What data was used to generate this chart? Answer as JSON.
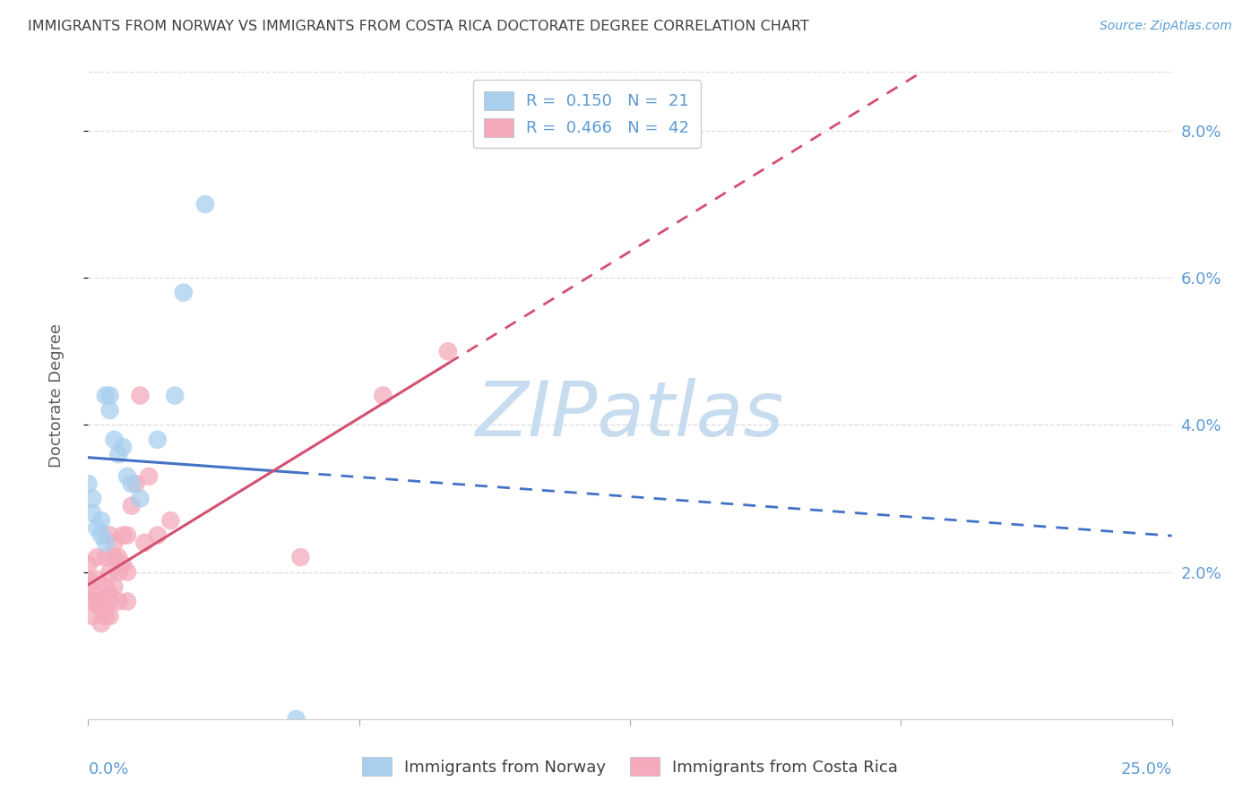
{
  "title": "IMMIGRANTS FROM NORWAY VS IMMIGRANTS FROM COSTA RICA DOCTORATE DEGREE CORRELATION CHART",
  "source": "Source: ZipAtlas.com",
  "ylabel": "Doctorate Degree",
  "xlim": [
    0.0,
    0.25
  ],
  "ylim": [
    0.0,
    0.088
  ],
  "norway_R": 0.15,
  "norway_N": 21,
  "costarica_R": 0.466,
  "costarica_N": 42,
  "norway_color": "#A8CFEE",
  "costarica_color": "#F4AABB",
  "norway_line_color": "#4472C4",
  "costarica_line_color": "#D45070",
  "norway_scatter_x": [
    0.0,
    0.001,
    0.001,
    0.002,
    0.003,
    0.003,
    0.004,
    0.004,
    0.005,
    0.005,
    0.006,
    0.007,
    0.008,
    0.009,
    0.01,
    0.012,
    0.016,
    0.02,
    0.022,
    0.027,
    0.048
  ],
  "norway_scatter_y": [
    0.032,
    0.028,
    0.03,
    0.026,
    0.025,
    0.027,
    0.024,
    0.044,
    0.042,
    0.044,
    0.038,
    0.036,
    0.037,
    0.033,
    0.032,
    0.03,
    0.038,
    0.044,
    0.058,
    0.07,
    0.0
  ],
  "costarica_scatter_x": [
    0.0,
    0.0,
    0.0,
    0.001,
    0.001,
    0.002,
    0.002,
    0.002,
    0.002,
    0.003,
    0.003,
    0.003,
    0.004,
    0.004,
    0.004,
    0.004,
    0.005,
    0.005,
    0.005,
    0.005,
    0.005,
    0.006,
    0.006,
    0.006,
    0.007,
    0.007,
    0.007,
    0.008,
    0.008,
    0.009,
    0.009,
    0.009,
    0.01,
    0.011,
    0.012,
    0.013,
    0.014,
    0.016,
    0.019,
    0.049,
    0.068,
    0.083
  ],
  "costarica_scatter_y": [
    0.018,
    0.019,
    0.021,
    0.014,
    0.016,
    0.016,
    0.017,
    0.019,
    0.022,
    0.013,
    0.015,
    0.016,
    0.014,
    0.015,
    0.018,
    0.022,
    0.014,
    0.016,
    0.017,
    0.02,
    0.025,
    0.018,
    0.022,
    0.024,
    0.016,
    0.02,
    0.022,
    0.021,
    0.025,
    0.016,
    0.02,
    0.025,
    0.029,
    0.032,
    0.044,
    0.024,
    0.033,
    0.025,
    0.027,
    0.022,
    0.044,
    0.05
  ],
  "watermark_text": "ZIPatlas",
  "watermark_color": "#C8DCEF",
  "background_color": "#FFFFFF",
  "grid_color": "#DDDDDD",
  "right_tick_color": "#5B9BD5",
  "legend_text_color": "#404040",
  "legend_rn_color": "#5B9BD5",
  "title_color": "#404040",
  "source_color": "#5B9BD5",
  "ylabel_color": "#606060",
  "bottom_legend_labels": [
    "Immigrants from Norway",
    "Immigrants from Costa Rica"
  ]
}
